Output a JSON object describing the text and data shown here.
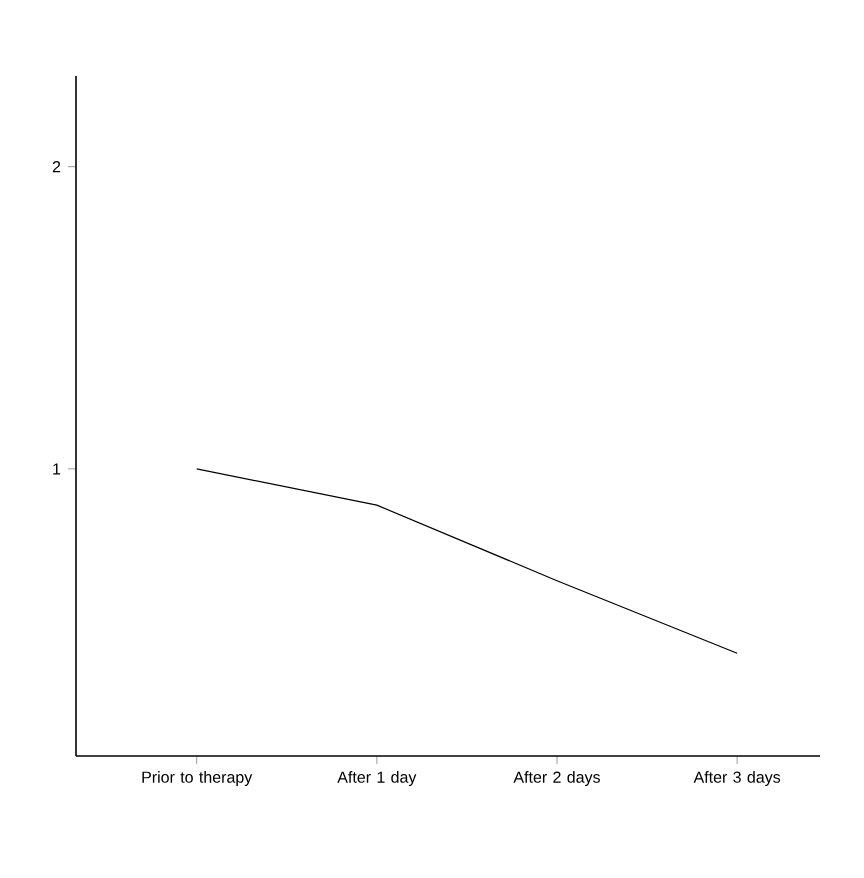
{
  "chart_data": {
    "type": "line",
    "categories": [
      "Prior to therapy",
      "After 1 day",
      "After 2 days",
      "After 3 days"
    ],
    "values": [
      1.0,
      0.88,
      0.63,
      0.39
    ],
    "color": "#000000",
    "ylim": [
      0.05,
      2.3
    ],
    "yticks": [
      1,
      2
    ],
    "grid": false,
    "marker": "none"
  }
}
